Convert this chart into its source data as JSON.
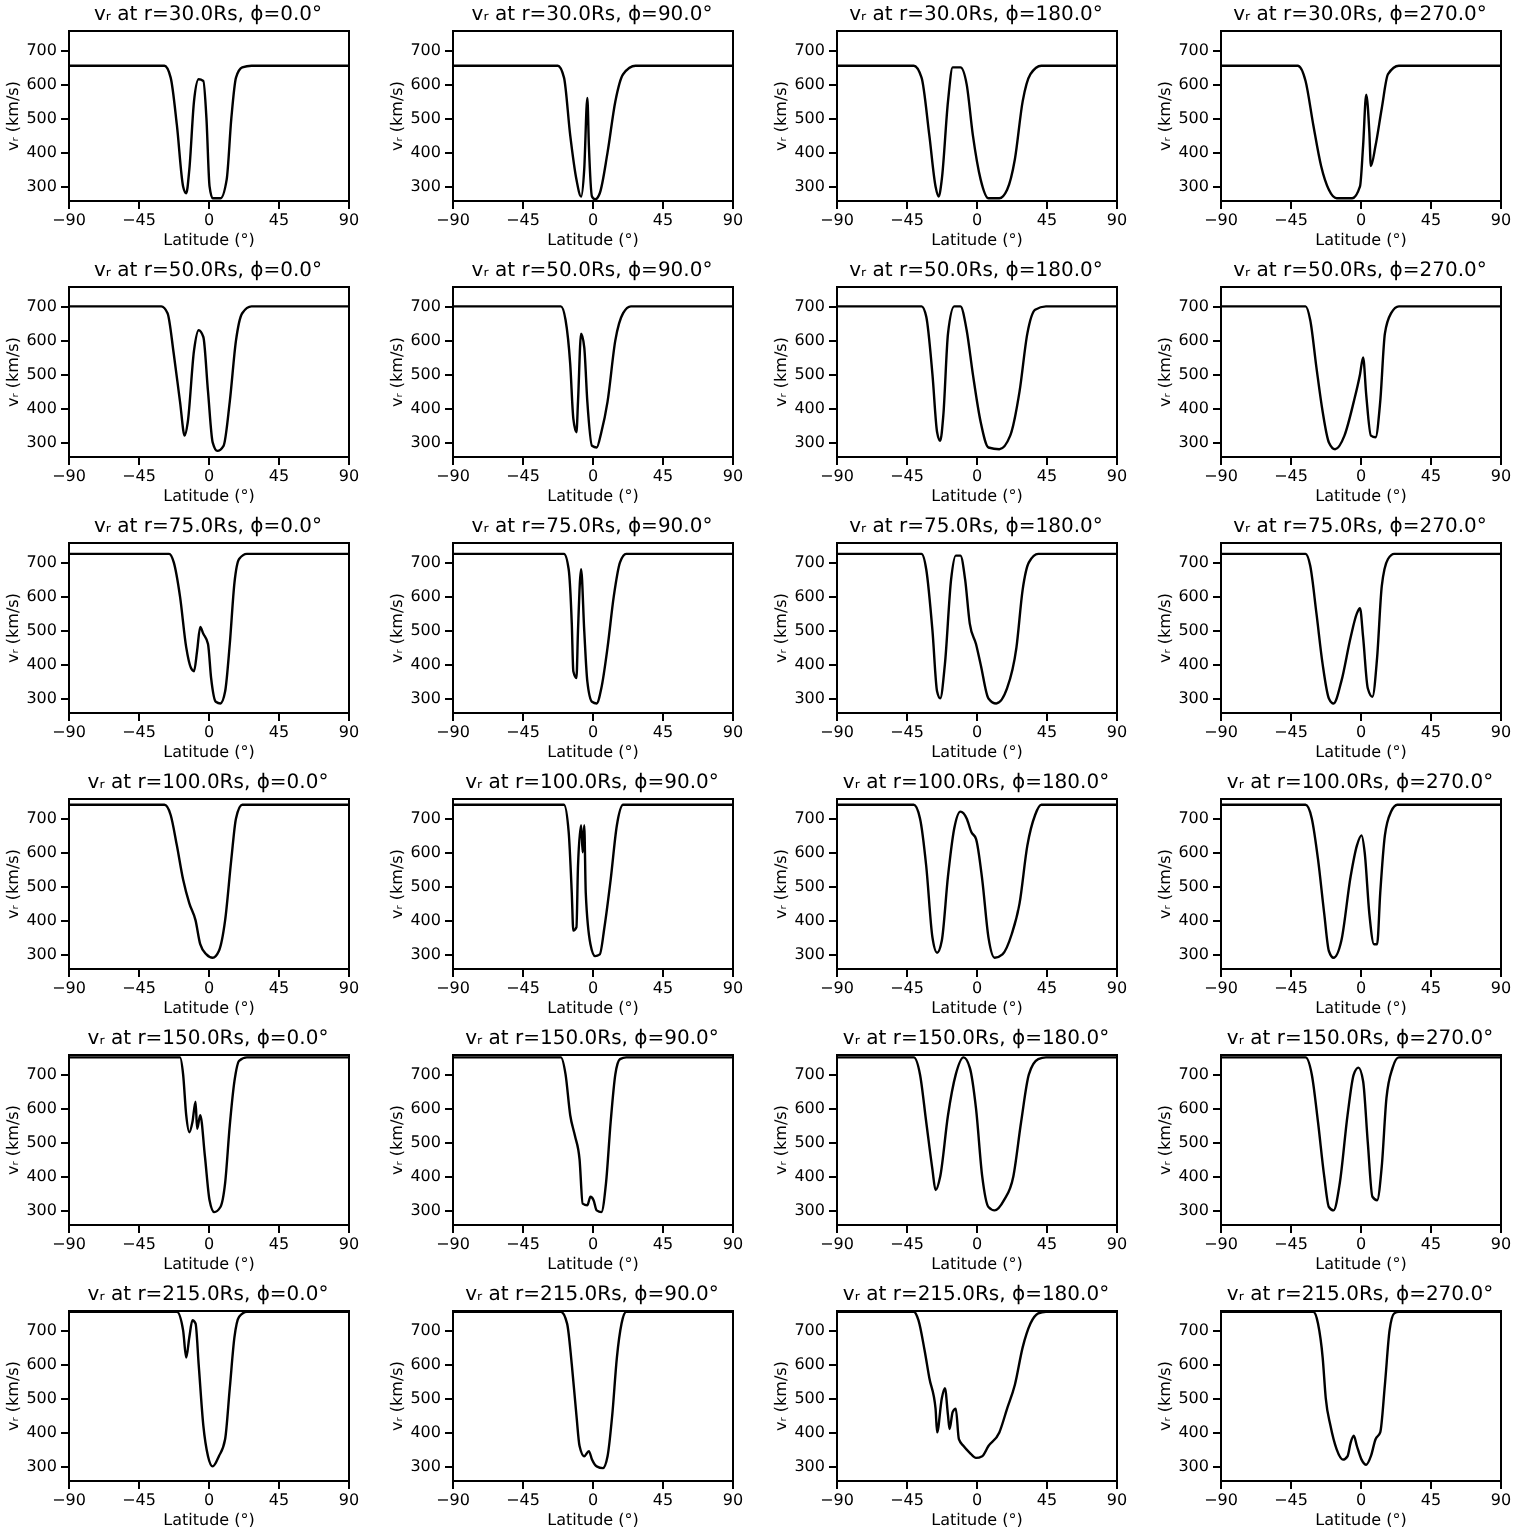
{
  "chart_data": [
    {
      "type": "line",
      "title": "vᵣ at r=30.0Rs, ϕ=0.0°",
      "xlabel": "Latitude (°)",
      "ylabel": "vᵣ (km/s)",
      "xlim": [
        -90,
        90
      ],
      "xticks": [
        -90,
        -45,
        0,
        45,
        90
      ],
      "ylim": [
        260,
        760
      ],
      "yticks": [
        300,
        400,
        500,
        600,
        700
      ],
      "grid": false,
      "series": [
        {
          "color": "#000000",
          "x": [
            -90,
            -28,
            -24,
            -20,
            -16,
            -14,
            -12,
            -9,
            -6,
            -3,
            -1,
            1,
            3,
            8,
            12,
            15,
            18,
            22,
            28,
            90
          ],
          "values": [
            655,
            655,
            620,
            480,
            300,
            280,
            350,
            550,
            615,
            610,
            500,
            300,
            265,
            265,
            320,
            500,
            620,
            650,
            655,
            655
          ]
        }
      ]
    },
    {
      "type": "line",
      "title": "vᵣ at r=30.0Rs, ϕ=90.0°",
      "xlabel": "Latitude (°)",
      "ylabel": "vᵣ (km/s)",
      "xlim": [
        -90,
        90
      ],
      "xticks": [
        -90,
        -45,
        0,
        45,
        90
      ],
      "ylim": [
        260,
        760
      ],
      "yticks": [
        300,
        400,
        500,
        600,
        700
      ],
      "grid": false,
      "series": [
        {
          "color": "#000000",
          "x": [
            -90,
            -22,
            -18,
            -14,
            -10,
            -7,
            -5,
            -3,
            -2,
            0,
            2,
            5,
            10,
            15,
            20,
            28,
            90
          ],
          "values": [
            655,
            655,
            620,
            450,
            320,
            270,
            350,
            560,
            420,
            270,
            262,
            280,
            400,
            550,
            630,
            655,
            655
          ]
        }
      ]
    },
    {
      "type": "line",
      "title": "vᵣ at r=30.0Rs, ϕ=180.0°",
      "xlabel": "Latitude (°)",
      "ylabel": "vᵣ (km/s)",
      "xlim": [
        -90,
        90
      ],
      "xticks": [
        -90,
        -45,
        0,
        45,
        90
      ],
      "ylim": [
        260,
        760
      ],
      "yticks": [
        300,
        400,
        500,
        600,
        700
      ],
      "grid": false,
      "series": [
        {
          "color": "#000000",
          "x": [
            -90,
            -40,
            -35,
            -30,
            -26,
            -24,
            -22,
            -18,
            -15,
            -10,
            -6,
            -2,
            3,
            8,
            15,
            20,
            25,
            30,
            35,
            42,
            90
          ],
          "values": [
            655,
            655,
            620,
            450,
            300,
            270,
            320,
            550,
            650,
            650,
            600,
            450,
            320,
            265,
            265,
            290,
            380,
            550,
            630,
            655,
            655
          ]
        }
      ]
    },
    {
      "type": "line",
      "title": "vᵣ at r=30.0Rs, ϕ=270.0°",
      "xlabel": "Latitude (°)",
      "ylabel": "vᵣ (km/s)",
      "xlim": [
        -90,
        90
      ],
      "xticks": [
        -90,
        -45,
        0,
        45,
        90
      ],
      "ylim": [
        260,
        760
      ],
      "yticks": [
        300,
        400,
        500,
        600,
        700
      ],
      "grid": false,
      "series": [
        {
          "color": "#000000",
          "x": [
            -90,
            -40,
            -35,
            -30,
            -25,
            -20,
            -15,
            -5,
            0,
            2,
            4,
            6,
            7,
            10,
            14,
            18,
            25,
            90
          ],
          "values": [
            655,
            655,
            610,
            480,
            360,
            290,
            265,
            265,
            300,
            420,
            570,
            460,
            360,
            420,
            530,
            630,
            655,
            655
          ]
        }
      ]
    },
    {
      "type": "line",
      "title": "vᵣ at r=50.0Rs, ϕ=0.0°",
      "xlabel": "Latitude (°)",
      "ylabel": "vᵣ (km/s)",
      "xlim": [
        -90,
        90
      ],
      "xticks": [
        -90,
        -45,
        0,
        45,
        90
      ],
      "ylim": [
        260,
        760
      ],
      "yticks": [
        300,
        400,
        500,
        600,
        700
      ],
      "grid": false,
      "series": [
        {
          "color": "#000000",
          "x": [
            -90,
            -30,
            -26,
            -22,
            -18,
            -15,
            -13,
            -9,
            -6,
            -3,
            0,
            3,
            6,
            10,
            14,
            18,
            22,
            28,
            90
          ],
          "values": [
            700,
            700,
            680,
            560,
            420,
            320,
            360,
            570,
            630,
            610,
            450,
            300,
            275,
            290,
            420,
            600,
            680,
            700,
            700
          ]
        }
      ]
    },
    {
      "type": "line",
      "title": "vᵣ at r=50.0Rs, ϕ=90.0°",
      "xlabel": "Latitude (°)",
      "ylabel": "vᵣ (km/s)",
      "xlim": [
        -90,
        90
      ],
      "xticks": [
        -90,
        -45,
        0,
        45,
        90
      ],
      "ylim": [
        260,
        760
      ],
      "yticks": [
        300,
        400,
        500,
        600,
        700
      ],
      "grid": false,
      "series": [
        {
          "color": "#000000",
          "x": [
            -90,
            -20,
            -17,
            -14,
            -12,
            -10,
            -9,
            -7,
            -5,
            -3,
            0,
            3,
            6,
            10,
            15,
            20,
            25,
            90
          ],
          "values": [
            700,
            700,
            660,
            530,
            370,
            330,
            420,
            620,
            580,
            420,
            290,
            285,
            330,
            420,
            600,
            680,
            700,
            700
          ]
        }
      ]
    },
    {
      "type": "line",
      "title": "vᵣ at r=50.0Rs, ϕ=180.0°",
      "xlabel": "Latitude (°)",
      "ylabel": "vᵣ (km/s)",
      "xlim": [
        -90,
        90
      ],
      "xticks": [
        -90,
        -45,
        0,
        45,
        90
      ],
      "ylim": [
        260,
        760
      ],
      "yticks": [
        300,
        400,
        500,
        600,
        700
      ],
      "grid": false,
      "series": [
        {
          "color": "#000000",
          "x": [
            -90,
            -35,
            -32,
            -28,
            -25,
            -23,
            -21,
            -18,
            -14,
            -10,
            -6,
            -2,
            3,
            8,
            15,
            22,
            28,
            33,
            38,
            45,
            90
          ],
          "values": [
            700,
            700,
            670,
            500,
            330,
            305,
            380,
            620,
            700,
            700,
            630,
            500,
            360,
            285,
            280,
            320,
            450,
            620,
            690,
            700,
            700
          ]
        }
      ]
    },
    {
      "type": "line",
      "title": "vᵣ at r=50.0Rs, ϕ=270.0°",
      "xlabel": "Latitude (°)",
      "ylabel": "vᵣ (km/s)",
      "xlim": [
        -90,
        90
      ],
      "xticks": [
        -90,
        -45,
        0,
        45,
        90
      ],
      "ylim": [
        260,
        760
      ],
      "yticks": [
        300,
        400,
        500,
        600,
        700
      ],
      "grid": false,
      "series": [
        {
          "color": "#000000",
          "x": [
            -90,
            -35,
            -32,
            -28,
            -24,
            -20,
            -16,
            -10,
            -4,
            0,
            2,
            4,
            7,
            10,
            13,
            16,
            20,
            25,
            90
          ],
          "values": [
            700,
            700,
            660,
            520,
            390,
            300,
            280,
            320,
            420,
            500,
            550,
            440,
            320,
            315,
            420,
            620,
            680,
            700,
            700
          ]
        }
      ]
    },
    {
      "type": "line",
      "title": "vᵣ at r=75.0Rs, ϕ=0.0°",
      "xlabel": "Latitude (°)",
      "ylabel": "vᵣ (km/s)",
      "xlim": [
        -90,
        90
      ],
      "xticks": [
        -90,
        -45,
        0,
        45,
        90
      ],
      "ylim": [
        260,
        760
      ],
      "yticks": [
        300,
        400,
        500,
        600,
        700
      ],
      "grid": false,
      "series": [
        {
          "color": "#000000",
          "x": [
            -90,
            -25,
            -22,
            -18,
            -14,
            -11,
            -9,
            -7,
            -5,
            -3,
            0,
            2,
            5,
            8,
            11,
            14,
            17,
            20,
            25,
            90
          ],
          "values": [
            725,
            725,
            700,
            600,
            450,
            390,
            380,
            440,
            510,
            490,
            460,
            360,
            290,
            285,
            320,
            460,
            640,
            710,
            725,
            725
          ]
        }
      ]
    },
    {
      "type": "line",
      "title": "vᵣ at r=75.0Rs, ϕ=90.0°",
      "xlabel": "Latitude (°)",
      "ylabel": "vᵣ (km/s)",
      "xlim": [
        -90,
        90
      ],
      "xticks": [
        -90,
        -45,
        0,
        45,
        90
      ],
      "ylim": [
        260,
        760
      ],
      "yticks": [
        300,
        400,
        500,
        600,
        700
      ],
      "grid": false,
      "series": [
        {
          "color": "#000000",
          "x": [
            -90,
            -18,
            -15,
            -13,
            -12,
            -10,
            -9,
            -7,
            -5,
            -3,
            0,
            3,
            6,
            10,
            14,
            18,
            22,
            90
          ],
          "values": [
            725,
            725,
            680,
            520,
            380,
            360,
            500,
            680,
            500,
            350,
            290,
            285,
            330,
            450,
            600,
            700,
            725,
            725
          ]
        }
      ]
    },
    {
      "type": "line",
      "title": "vᵣ at r=75.0Rs, ϕ=180.0°",
      "xlabel": "Latitude (°)",
      "ylabel": "vᵣ (km/s)",
      "xlim": [
        -90,
        90
      ],
      "xticks": [
        -90,
        -45,
        0,
        45,
        90
      ],
      "ylim": [
        260,
        760
      ],
      "yticks": [
        300,
        400,
        500,
        600,
        700
      ],
      "grid": false,
      "series": [
        {
          "color": "#000000",
          "x": [
            -90,
            -35,
            -32,
            -28,
            -25,
            -23,
            -20,
            -16,
            -13,
            -10,
            -7,
            -4,
            0,
            3,
            8,
            13,
            20,
            26,
            30,
            34,
            40,
            90
          ],
          "values": [
            725,
            725,
            680,
            500,
            320,
            300,
            400,
            650,
            720,
            720,
            650,
            520,
            460,
            400,
            300,
            285,
            330,
            450,
            620,
            700,
            725,
            725
          ]
        }
      ]
    },
    {
      "type": "line",
      "title": "vᵣ at r=75.0Rs, ϕ=270.0°",
      "xlabel": "Latitude (°)",
      "ylabel": "vᵣ (km/s)",
      "xlim": [
        -90,
        90
      ],
      "xticks": [
        -90,
        -45,
        0,
        45,
        90
      ],
      "ylim": [
        260,
        760
      ],
      "yticks": [
        300,
        400,
        500,
        600,
        700
      ],
      "grid": false,
      "series": [
        {
          "color": "#000000",
          "x": [
            -90,
            -35,
            -32,
            -28,
            -24,
            -20,
            -17,
            -12,
            -6,
            -2,
            0,
            2,
            5,
            8,
            11,
            14,
            18,
            22,
            90
          ],
          "values": [
            725,
            725,
            690,
            550,
            400,
            300,
            285,
            350,
            480,
            550,
            565,
            480,
            330,
            305,
            420,
            630,
            710,
            725,
            725
          ]
        }
      ]
    },
    {
      "type": "line",
      "title": "vᵣ at r=100.0Rs, ϕ=0.0°",
      "xlabel": "Latitude (°)",
      "ylabel": "vᵣ (km/s)",
      "xlim": [
        -90,
        90
      ],
      "xticks": [
        -90,
        -45,
        0,
        45,
        90
      ],
      "ylim": [
        260,
        760
      ],
      "yticks": [
        300,
        400,
        500,
        600,
        700
      ],
      "grid": false,
      "series": [
        {
          "color": "#000000",
          "x": [
            -90,
            -28,
            -24,
            -20,
            -16,
            -12,
            -8,
            -5,
            -1,
            3,
            7,
            11,
            15,
            18,
            22,
            90
          ],
          "values": [
            740,
            740,
            710,
            620,
            520,
            450,
            400,
            330,
            300,
            290,
            310,
            400,
            580,
            700,
            740,
            740
          ]
        }
      ]
    },
    {
      "type": "line",
      "title": "vᵣ at r=100.0Rs, ϕ=90.0°",
      "xlabel": "Latitude (°)",
      "ylabel": "vᵣ (km/s)",
      "xlim": [
        -90,
        90
      ],
      "xticks": [
        -90,
        -45,
        0,
        45,
        90
      ],
      "ylim": [
        260,
        760
      ],
      "yticks": [
        300,
        400,
        500,
        600,
        700
      ],
      "grid": false,
      "series": [
        {
          "color": "#000000",
          "x": [
            -90,
            -18,
            -15,
            -13,
            -12,
            -10,
            -9,
            -7,
            -6,
            -5,
            -4,
            -1,
            2,
            5,
            8,
            12,
            16,
            20,
            90
          ],
          "values": [
            740,
            740,
            660,
            480,
            370,
            380,
            560,
            680,
            600,
            680,
            480,
            330,
            295,
            300,
            380,
            520,
            680,
            740,
            740
          ]
        }
      ]
    },
    {
      "type": "line",
      "title": "vᵣ at r=100.0Rs, ϕ=180.0°",
      "xlabel": "Latitude (°)",
      "ylabel": "vᵣ (km/s)",
      "xlim": [
        -90,
        90
      ],
      "xticks": [
        -90,
        -45,
        0,
        45,
        90
      ],
      "ylim": [
        260,
        760
      ],
      "yticks": [
        300,
        400,
        500,
        600,
        700
      ],
      "grid": false,
      "series": [
        {
          "color": "#000000",
          "x": [
            -90,
            -40,
            -36,
            -32,
            -28,
            -25,
            -22,
            -18,
            -14,
            -10,
            -6,
            -3,
            0,
            4,
            8,
            12,
            17,
            23,
            28,
            33,
            38,
            42,
            90
          ],
          "values": [
            740,
            740,
            700,
            560,
            350,
            305,
            340,
            530,
            670,
            720,
            700,
            660,
            640,
            520,
            350,
            290,
            300,
            360,
            450,
            620,
            710,
            740,
            740
          ]
        }
      ]
    },
    {
      "type": "line",
      "title": "vᵣ at r=100.0Rs, ϕ=270.0°",
      "xlabel": "Latitude (°)",
      "ylabel": "vᵣ (km/s)",
      "xlim": [
        -90,
        90
      ],
      "xticks": [
        -90,
        -45,
        0,
        45,
        90
      ],
      "ylim": [
        260,
        760
      ],
      "yticks": [
        300,
        400,
        500,
        600,
        700
      ],
      "grid": false,
      "series": [
        {
          "color": "#000000",
          "x": [
            -90,
            -35,
            -31,
            -27,
            -23,
            -20,
            -17,
            -12,
            -6,
            -2,
            1,
            3,
            6,
            9,
            11,
            13,
            16,
            20,
            24,
            90
          ],
          "values": [
            740,
            740,
            700,
            580,
            420,
            310,
            290,
            340,
            530,
            620,
            650,
            600,
            420,
            330,
            330,
            480,
            650,
            720,
            740,
            740
          ]
        }
      ]
    },
    {
      "type": "line",
      "title": "vᵣ at r=150.0Rs, ϕ=0.0°",
      "xlabel": "Latitude (°)",
      "ylabel": "vᵣ (km/s)",
      "xlim": [
        -90,
        90
      ],
      "xticks": [
        -90,
        -45,
        0,
        45,
        90
      ],
      "ylim": [
        260,
        760
      ],
      "yticks": [
        300,
        400,
        500,
        600,
        700
      ],
      "grid": false,
      "series": [
        {
          "color": "#000000",
          "x": [
            -90,
            -18,
            -16,
            -14,
            -12,
            -10,
            -8,
            -7,
            -5,
            -2,
            1,
            4,
            8,
            11,
            14,
            17,
            20,
            25,
            90
          ],
          "values": [
            750,
            750,
            700,
            580,
            530,
            560,
            620,
            540,
            580,
            460,
            330,
            295,
            310,
            380,
            550,
            680,
            740,
            750,
            750
          ]
        }
      ]
    },
    {
      "type": "line",
      "title": "vᵣ at r=150.0Rs, ϕ=90.0°",
      "xlabel": "Latitude (°)",
      "ylabel": "vᵣ (km/s)",
      "xlim": [
        -90,
        90
      ],
      "xticks": [
        -90,
        -45,
        0,
        45,
        90
      ],
      "ylim": [
        260,
        760
      ],
      "yticks": [
        300,
        400,
        500,
        600,
        700
      ],
      "grid": false,
      "series": [
        {
          "color": "#000000",
          "x": [
            -90,
            -20,
            -17,
            -14,
            -11,
            -8,
            -6,
            -3,
            -1,
            1,
            3,
            6,
            9,
            12,
            15,
            18,
            22,
            90
          ],
          "values": [
            750,
            750,
            700,
            580,
            520,
            450,
            320,
            315,
            340,
            330,
            300,
            295,
            380,
            560,
            700,
            745,
            750,
            750
          ]
        }
      ]
    },
    {
      "type": "line",
      "title": "vᵣ at r=150.0Rs, ϕ=180.0°",
      "xlabel": "Latitude (°)",
      "ylabel": "vᵣ (km/s)",
      "xlim": [
        -90,
        90
      ],
      "xticks": [
        -90,
        -45,
        0,
        45,
        90
      ],
      "ylim": [
        260,
        760
      ],
      "yticks": [
        300,
        400,
        500,
        600,
        700
      ],
      "grid": false,
      "series": [
        {
          "color": "#000000",
          "x": [
            -90,
            -40,
            -36,
            -32,
            -28,
            -26,
            -23,
            -18,
            -13,
            -8,
            -4,
            0,
            4,
            8,
            12,
            18,
            24,
            29,
            34,
            40,
            45,
            90
          ],
          "values": [
            750,
            750,
            700,
            560,
            420,
            360,
            400,
            580,
            700,
            750,
            720,
            600,
            400,
            310,
            300,
            330,
            400,
            560,
            700,
            745,
            750,
            750
          ]
        }
      ]
    },
    {
      "type": "line",
      "title": "vᵣ at r=150.0Rs, ϕ=270.0°",
      "xlabel": "Latitude (°)",
      "ylabel": "vᵣ (km/s)",
      "xlim": [
        -90,
        90
      ],
      "xticks": [
        -90,
        -45,
        0,
        45,
        90
      ],
      "ylim": [
        260,
        760
      ],
      "yticks": [
        300,
        400,
        500,
        600,
        700
      ],
      "grid": false,
      "series": [
        {
          "color": "#000000",
          "x": [
            -90,
            -35,
            -31,
            -27,
            -23,
            -20,
            -17,
            -13,
            -8,
            -4,
            -1,
            2,
            5,
            8,
            11,
            14,
            17,
            21,
            25,
            90
          ],
          "values": [
            750,
            750,
            700,
            560,
            400,
            310,
            300,
            380,
            580,
            700,
            720,
            680,
            500,
            340,
            330,
            430,
            630,
            720,
            750,
            750
          ]
        }
      ]
    },
    {
      "type": "line",
      "title": "vᵣ at r=215.0Rs, ϕ=0.0°",
      "xlabel": "Latitude (°)",
      "ylabel": "vᵣ (km/s)",
      "xlim": [
        -90,
        90
      ],
      "xticks": [
        -90,
        -45,
        0,
        45,
        90
      ],
      "ylim": [
        260,
        760
      ],
      "yticks": [
        300,
        400,
        500,
        600,
        700
      ],
      "grid": false,
      "series": [
        {
          "color": "#000000",
          "x": [
            -90,
            -20,
            -16,
            -14,
            -12,
            -10,
            -8,
            -6,
            -3,
            0,
            3,
            7,
            11,
            14,
            17,
            20,
            25,
            90
          ],
          "values": [
            755,
            755,
            700,
            620,
            680,
            730,
            720,
            600,
            420,
            330,
            300,
            330,
            380,
            530,
            680,
            740,
            755,
            755
          ]
        }
      ]
    },
    {
      "type": "line",
      "title": "vᵣ at r=215.0Rs, ϕ=90.0°",
      "xlabel": "Latitude (°)",
      "ylabel": "vᵣ (km/s)",
      "xlim": [
        -90,
        90
      ],
      "xticks": [
        -90,
        -45,
        0,
        45,
        90
      ],
      "ylim": [
        260,
        760
      ],
      "yticks": [
        300,
        400,
        500,
        600,
        700
      ],
      "grid": false,
      "series": [
        {
          "color": "#000000",
          "x": [
            -90,
            -20,
            -16,
            -13,
            -10,
            -8,
            -5,
            -2,
            0,
            3,
            7,
            10,
            13,
            16,
            19,
            22,
            90
          ],
          "values": [
            755,
            755,
            720,
            600,
            450,
            360,
            330,
            345,
            320,
            300,
            295,
            330,
            450,
            620,
            720,
            755,
            755
          ]
        }
      ]
    },
    {
      "type": "line",
      "title": "vᵣ at r=215.0Rs, ϕ=180.0°",
      "xlabel": "Latitude (°)",
      "ylabel": "vᵣ (km/s)",
      "xlim": [
        -90,
        90
      ],
      "xticks": [
        -90,
        -45,
        0,
        45,
        90
      ],
      "ylim": [
        260,
        760
      ],
      "yticks": [
        300,
        400,
        500,
        600,
        700
      ],
      "grid": false,
      "series": [
        {
          "color": "#000000",
          "x": [
            -90,
            -40,
            -37,
            -33,
            -30,
            -26,
            -25,
            -22,
            -20,
            -18,
            -17,
            -15,
            -13,
            -11,
            -8,
            -4,
            0,
            4,
            8,
            15,
            20,
            25,
            30,
            35,
            40,
            45,
            90
          ],
          "values": [
            755,
            755,
            730,
            640,
            560,
            470,
            400,
            500,
            530,
            450,
            410,
            460,
            470,
            380,
            360,
            340,
            325,
            330,
            360,
            400,
            470,
            540,
            650,
            720,
            750,
            755,
            755
          ]
        }
      ]
    },
    {
      "type": "line",
      "title": "vᵣ at r=215.0Rs, ϕ=270.0°",
      "xlabel": "Latitude (°)",
      "ylabel": "vᵣ (km/s)",
      "xlim": [
        -90,
        90
      ],
      "xticks": [
        -90,
        -45,
        0,
        45,
        90
      ],
      "ylim": [
        260,
        760
      ],
      "yticks": [
        300,
        400,
        500,
        600,
        700
      ],
      "grid": false,
      "series": [
        {
          "color": "#000000",
          "x": [
            -90,
            -30,
            -27,
            -24,
            -22,
            -19,
            -15,
            -11,
            -8,
            -6,
            -4,
            -2,
            1,
            4,
            7,
            10,
            13,
            16,
            19,
            22,
            25,
            90
          ],
          "values": [
            755,
            755,
            720,
            620,
            500,
            420,
            350,
            320,
            330,
            370,
            390,
            360,
            320,
            305,
            330,
            380,
            400,
            540,
            700,
            750,
            755,
            755
          ]
        }
      ]
    }
  ]
}
